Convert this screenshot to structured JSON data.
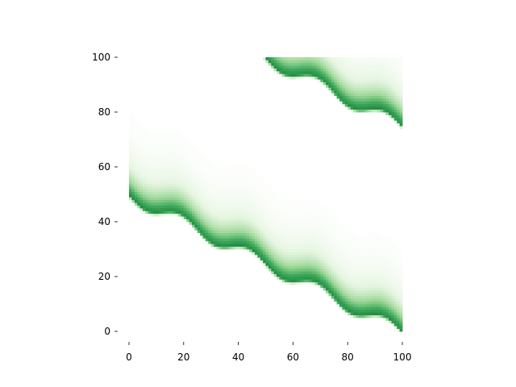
{
  "chart_data": {
    "type": "heatmap",
    "title": "",
    "xlabel": "",
    "ylabel": "",
    "xlim": [
      0,
      100
    ],
    "ylim": [
      0,
      100
    ],
    "x_ticks": [
      0,
      20,
      40,
      60,
      80,
      100
    ],
    "y_ticks": [
      0,
      20,
      40,
      60,
      80,
      100
    ],
    "x_tick_labels": [
      "0",
      "20",
      "40",
      "60",
      "80",
      "100"
    ],
    "y_tick_labels": [
      "0",
      "20",
      "40",
      "60",
      "80",
      "100"
    ],
    "grid": false,
    "colormap": [
      "#ffffff",
      "#e5f5e0",
      "#a1d99b",
      "#41ab5d",
      "#238b45"
    ],
    "bands": [
      {
        "description": "lower-left band, crest where y = 50 - x/2 - 2.5*sin(2*pi*x/25)",
        "crest": {
          "base": 50,
          "slope": -0.5,
          "wave_amplitude": 2.5,
          "wave_period": 25
        },
        "x_range": [
          0,
          100
        ],
        "peak_intensity": 1.0,
        "spread_above_crest": 30
      },
      {
        "description": "upper-right band, crest where y = 100 - (x-50)/2 - 2.5*sin(2*pi*(x-50)/25)",
        "crest": {
          "base": 125,
          "slope": -0.5,
          "wave_amplitude": 2.5,
          "wave_period": 25
        },
        "x_range": [
          0,
          100
        ],
        "peak_intensity": 1.0,
        "spread_above_crest": 30
      }
    ]
  }
}
